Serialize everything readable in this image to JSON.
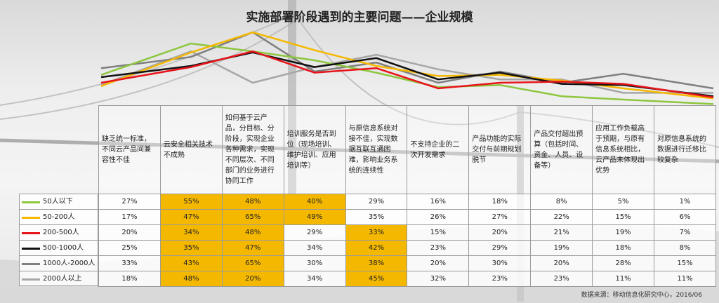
{
  "title": "实施部署阶段遇到的主要问题——企业规模",
  "source": "数据来源：移动信息化研究中心，2016/06",
  "chart_data": {
    "type": "line",
    "categories": [
      "缺乏统一标准，不同云产品间兼容性不佳",
      "云安全相关技术不成熟",
      "如何基于云产品，分目标、分阶段，实现企业各种需求，实现不同层次、不同部门的业务进行协同工作",
      "培训服务是否到位（现场培训、维护培训、应用培训等）",
      "与原信息系统对接不佳，实现数据互联互通困难，影响业务系统的连续性",
      "不支持企业的二次开发需求",
      "产品功能的实际交付与前期规划脱节",
      "产品交付超出预算（包括时间、资金、人员、设备等）",
      "应用工作负载高于预期，与原有信息系统相比，云产品未体现出优势",
      "对原信息系统的数据进行迁移比较复杂"
    ],
    "series": [
      {
        "name": "50人以下",
        "color": "#8dc63f",
        "values": [
          27,
          55,
          48,
          40,
          29,
          16,
          18,
          8,
          5,
          1
        ],
        "display": [
          "27%",
          "55%",
          "48%",
          "40%",
          "29%",
          "16%",
          "18%",
          "8%",
          "5%",
          "1%"
        ],
        "highlight": [
          false,
          true,
          true,
          true,
          false,
          false,
          false,
          false,
          false,
          false
        ]
      },
      {
        "name": "50-200人",
        "color": "#f5b800",
        "values": [
          17,
          47,
          65,
          49,
          35,
          26,
          27,
          22,
          15,
          6
        ],
        "display": [
          "17%",
          "47%",
          "65%",
          "49%",
          "35%",
          "26%",
          "27%",
          "22%",
          "15%",
          "6%"
        ],
        "highlight": [
          false,
          true,
          true,
          true,
          false,
          false,
          false,
          false,
          false,
          false
        ]
      },
      {
        "name": "200-500人",
        "color": "#e8141b",
        "values": [
          20,
          34,
          48,
          29,
          33,
          15,
          20,
          21,
          19,
          7
        ],
        "display": [
          "20%",
          "34%",
          "48%",
          "29%",
          "33%",
          "15%",
          "20%",
          "21%",
          "19%",
          "7%"
        ],
        "highlight": [
          false,
          true,
          true,
          false,
          true,
          false,
          false,
          false,
          false,
          false
        ]
      },
      {
        "name": "500-1000人",
        "color": "#111111",
        "values": [
          25,
          35,
          47,
          34,
          42,
          23,
          29,
          19,
          18,
          8
        ],
        "display": [
          "25%",
          "35%",
          "47%",
          "34%",
          "42%",
          "23%",
          "29%",
          "19%",
          "18%",
          "8%"
        ],
        "highlight": [
          false,
          true,
          true,
          false,
          true,
          false,
          false,
          false,
          false,
          false
        ]
      },
      {
        "name": "1000人-2000人",
        "color": "#7f7f7f",
        "values": [
          33,
          43,
          65,
          30,
          38,
          20,
          30,
          20,
          28,
          15
        ],
        "display": [
          "33%",
          "43%",
          "65%",
          "30%",
          "38%",
          "20%",
          "30%",
          "20%",
          "28%",
          "15%"
        ],
        "highlight": [
          false,
          true,
          true,
          false,
          true,
          false,
          false,
          false,
          false,
          false
        ]
      },
      {
        "name": "2000人以上",
        "color": "#a6a6a6",
        "values": [
          18,
          48,
          20,
          34,
          45,
          32,
          23,
          23,
          11,
          11
        ],
        "display": [
          "18%",
          "48%",
          "20%",
          "34%",
          "45%",
          "32%",
          "23%",
          "23%",
          "11%",
          "11%"
        ],
        "highlight": [
          false,
          true,
          true,
          false,
          true,
          false,
          false,
          false,
          false,
          false
        ]
      }
    ]
  }
}
